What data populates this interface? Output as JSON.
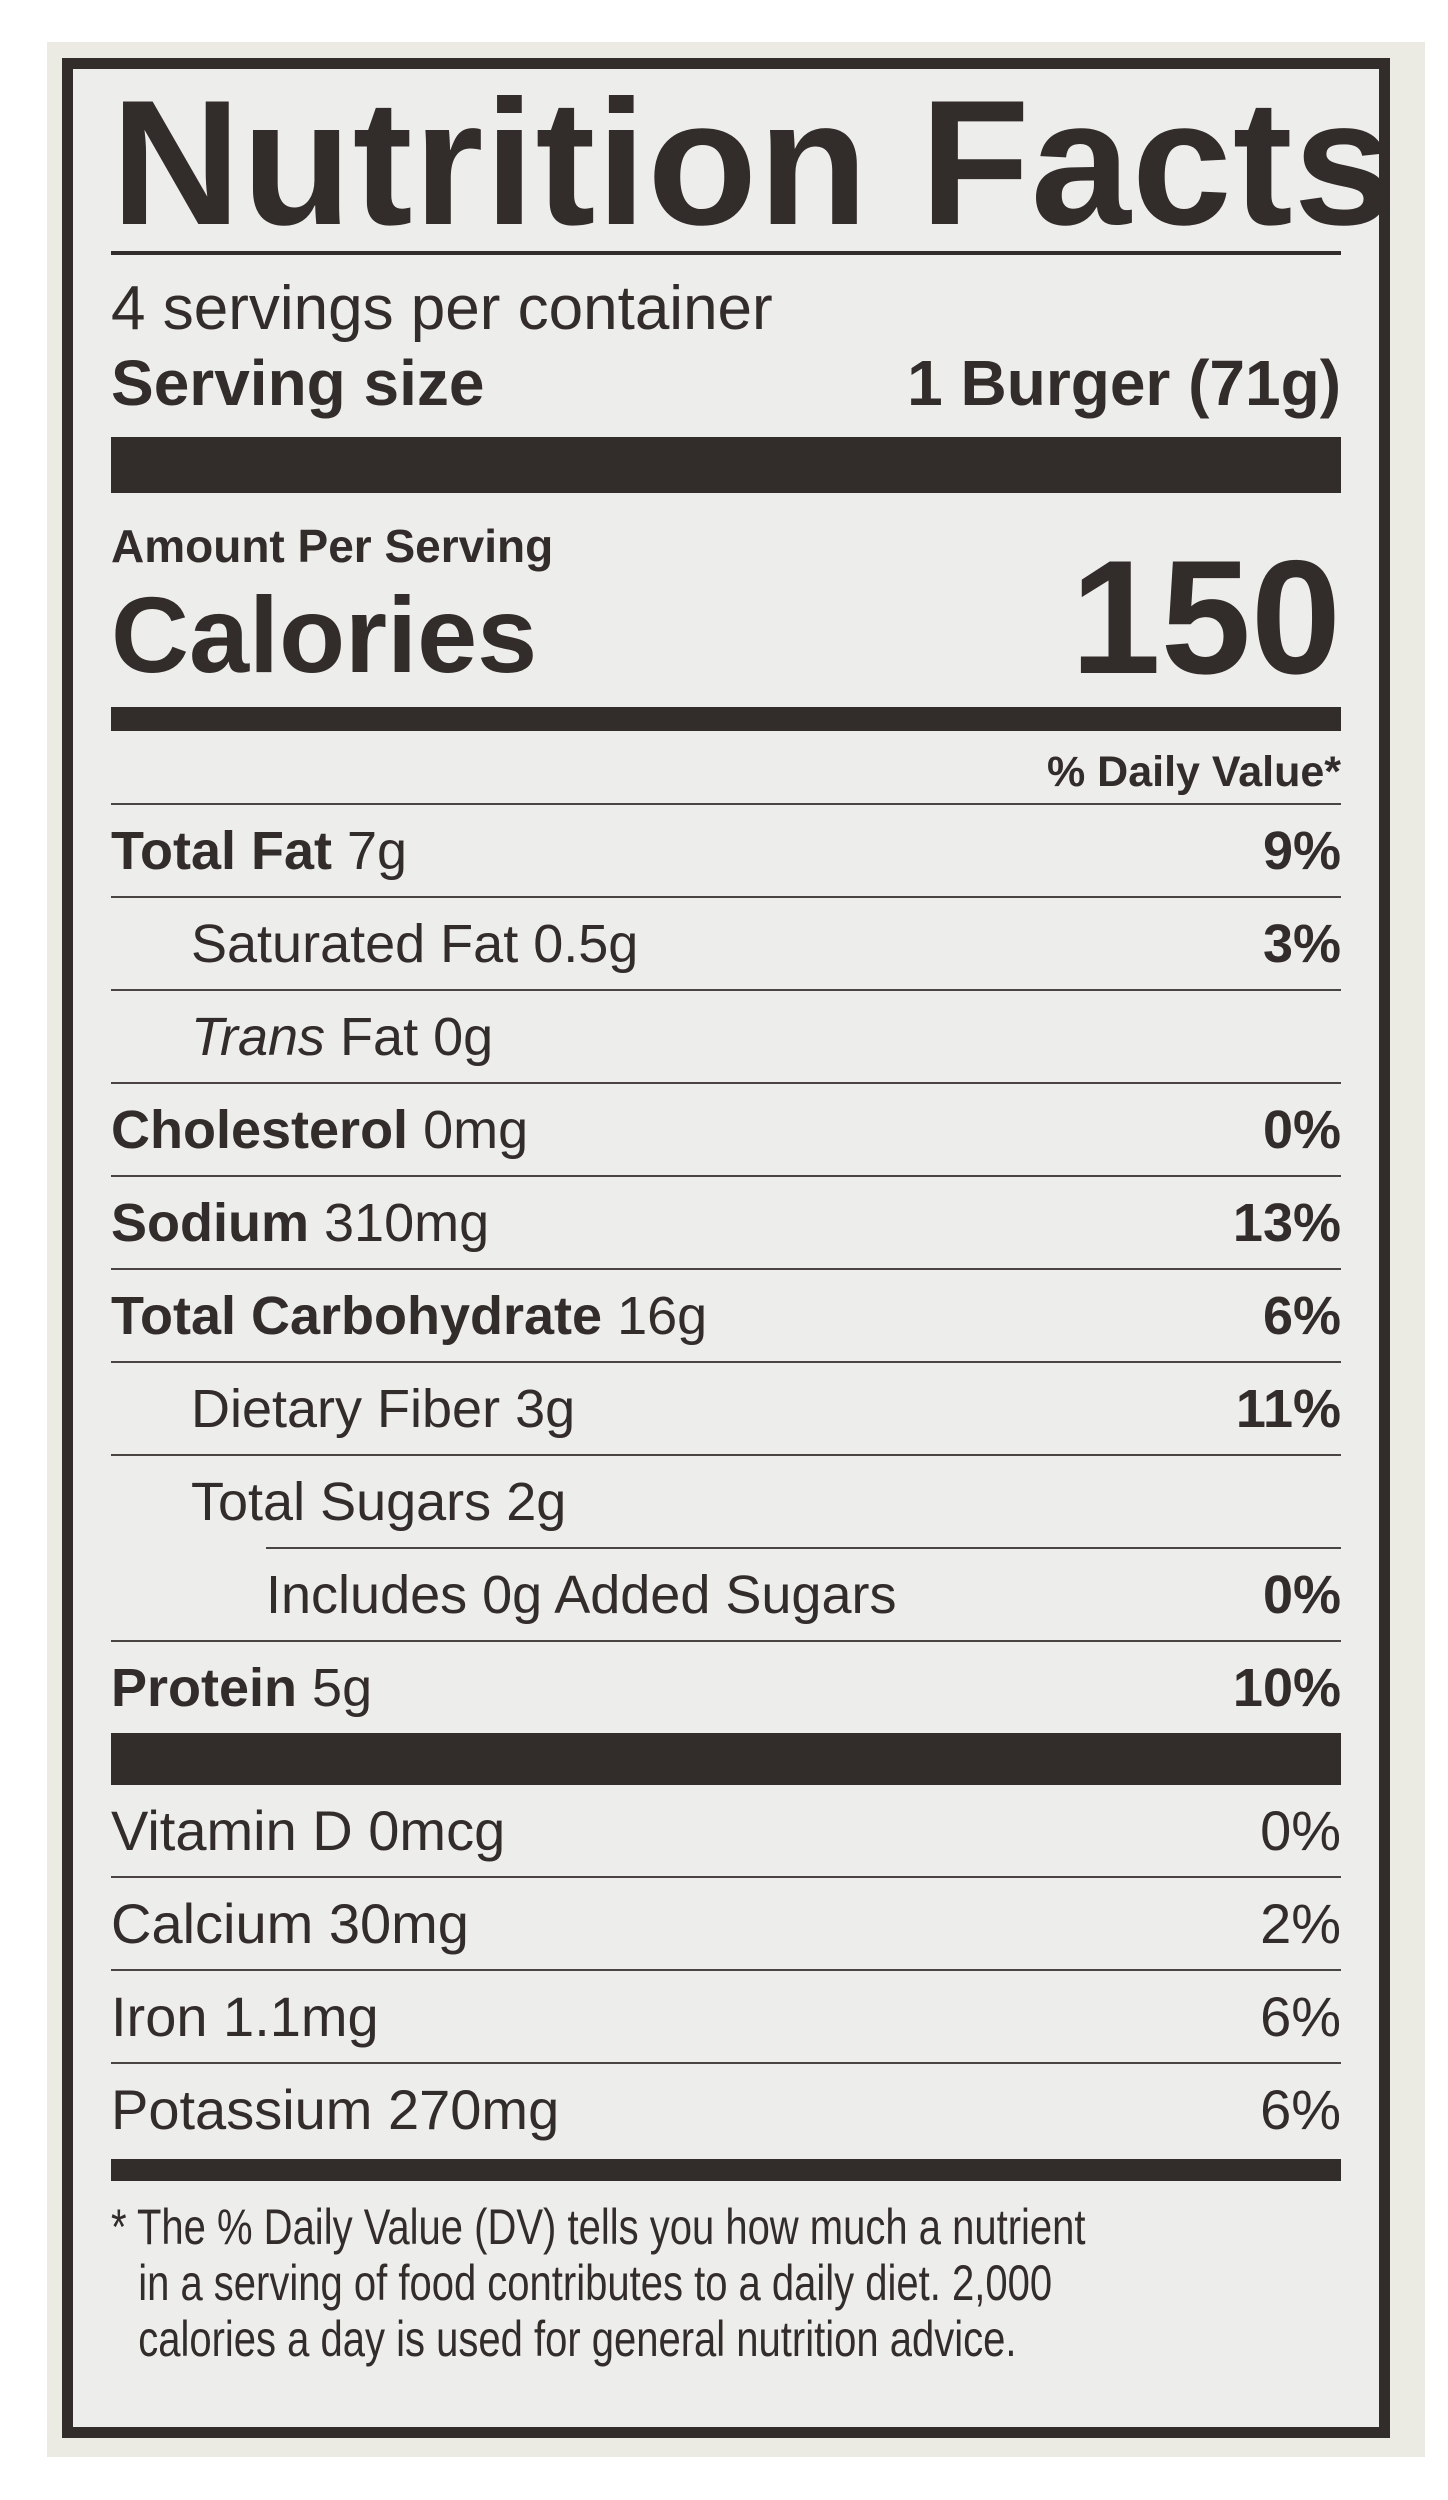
{
  "title": "Nutrition Facts",
  "servings_per_container": "4 servings per container",
  "serving_size": {
    "label": "Serving size",
    "value": "1 Burger (71g)"
  },
  "amount_per_serving": "Amount Per Serving",
  "calories": {
    "label": "Calories",
    "value": "150"
  },
  "daily_value_header": "% Daily Value*",
  "nutrients": [
    {
      "name": "Total Fat",
      "amount": "7g",
      "dv": "9%"
    },
    {
      "name": "Saturated Fat",
      "amount": "0.5g",
      "dv": "3%"
    },
    {
      "name": "Trans",
      "name_suffix": "Fat",
      "amount": "0g",
      "dv": ""
    },
    {
      "name": "Cholesterol",
      "amount": "0mg",
      "dv": "0%"
    },
    {
      "name": "Sodium",
      "amount": "310mg",
      "dv": "13%"
    },
    {
      "name": "Total Carbohydrate",
      "amount": "16g",
      "dv": "6%"
    },
    {
      "name": "Dietary Fiber",
      "amount": "3g",
      "dv": "11%"
    },
    {
      "name": "Total Sugars",
      "amount": "2g",
      "dv": ""
    },
    {
      "name": "Includes 0g Added Sugars",
      "amount": "",
      "dv": "0%"
    },
    {
      "name": "Protein",
      "amount": "5g",
      "dv": "10%"
    }
  ],
  "vitamins": [
    {
      "name": "Vitamin D 0mcg",
      "dv": "0%"
    },
    {
      "name": "Calcium 30mg",
      "dv": "2%"
    },
    {
      "name": "Iron 1.1mg",
      "dv": "6%"
    },
    {
      "name": "Potassium 270mg",
      "dv": "6%"
    }
  ],
  "footnote": [
    "* The % Daily Value (DV) tells you how much a nutrient",
    "in a serving of food contributes to a daily diet. 2,000",
    "calories a day is used for general nutrition advice."
  ],
  "colors": {
    "ink": "#322c2a",
    "panel": "#ededeb",
    "card": "#ecebe3"
  }
}
